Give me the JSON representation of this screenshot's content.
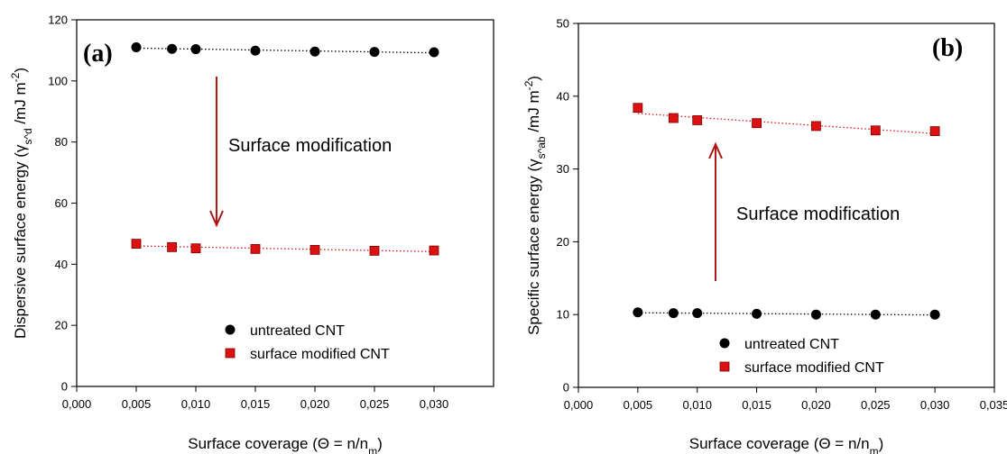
{
  "colors": {
    "untreated": "#000000",
    "modified": "#dd1111",
    "arrow": "#b01818"
  },
  "chart_data": [
    {
      "type": "scatter",
      "panel_label": "(a)",
      "xlabel": "Surface coverage (Θ = n/n_m)",
      "ylabel": "Dispersive surface energy (γ_s^d /mJ m^-2)",
      "xlim": [
        0,
        0.035
      ],
      "ylim": [
        0,
        120
      ],
      "x_ticks": [
        "0,000",
        "0,005",
        "0,010",
        "0,015",
        "0,020",
        "0,025",
        "0,030"
      ],
      "y_ticks": [
        "0",
        "20",
        "40",
        "60",
        "80",
        "100",
        "120"
      ],
      "annotation": "Surface modification",
      "arrow_direction": "down",
      "legend_placement": "bottom-center",
      "series": [
        {
          "name": "untreated CNT",
          "marker": "circle",
          "x": [
            0.005,
            0.008,
            0.01,
            0.015,
            0.02,
            0.025,
            0.03
          ],
          "y": [
            111.0,
            110.5,
            110.4,
            109.9,
            109.6,
            109.5,
            109.4
          ]
        },
        {
          "name": "surface modified CNT",
          "marker": "square",
          "x": [
            0.005,
            0.008,
            0.01,
            0.015,
            0.02,
            0.025,
            0.03
          ],
          "y": [
            46.7,
            45.6,
            45.2,
            45.0,
            44.7,
            44.4,
            44.5
          ]
        }
      ]
    },
    {
      "type": "scatter",
      "panel_label": "(b)",
      "xlabel": "Surface coverage (Θ = n/n_m)",
      "ylabel": "Specific surface energy (γ_s^ab /mJ m^-2)",
      "xlim": [
        0,
        0.035
      ],
      "ylim": [
        0,
        50
      ],
      "x_ticks": [
        "0,000",
        "0,005",
        "0,010",
        "0,015",
        "0,020",
        "0,025",
        "0,030",
        "0,035"
      ],
      "y_ticks": [
        "0",
        "10",
        "20",
        "30",
        "40",
        "50"
      ],
      "annotation": "Surface modification",
      "arrow_direction": "up",
      "legend_placement": "bottom-center",
      "series": [
        {
          "name": "untreated CNT",
          "marker": "circle",
          "x": [
            0.005,
            0.008,
            0.01,
            0.015,
            0.02,
            0.025,
            0.03
          ],
          "y": [
            10.3,
            10.2,
            10.2,
            10.1,
            10.0,
            10.0,
            10.0
          ]
        },
        {
          "name": "surface modified CNT",
          "marker": "square",
          "x": [
            0.005,
            0.008,
            0.01,
            0.015,
            0.02,
            0.025,
            0.03
          ],
          "y": [
            38.4,
            37.0,
            36.7,
            36.3,
            35.9,
            35.3,
            35.2
          ]
        }
      ]
    }
  ]
}
